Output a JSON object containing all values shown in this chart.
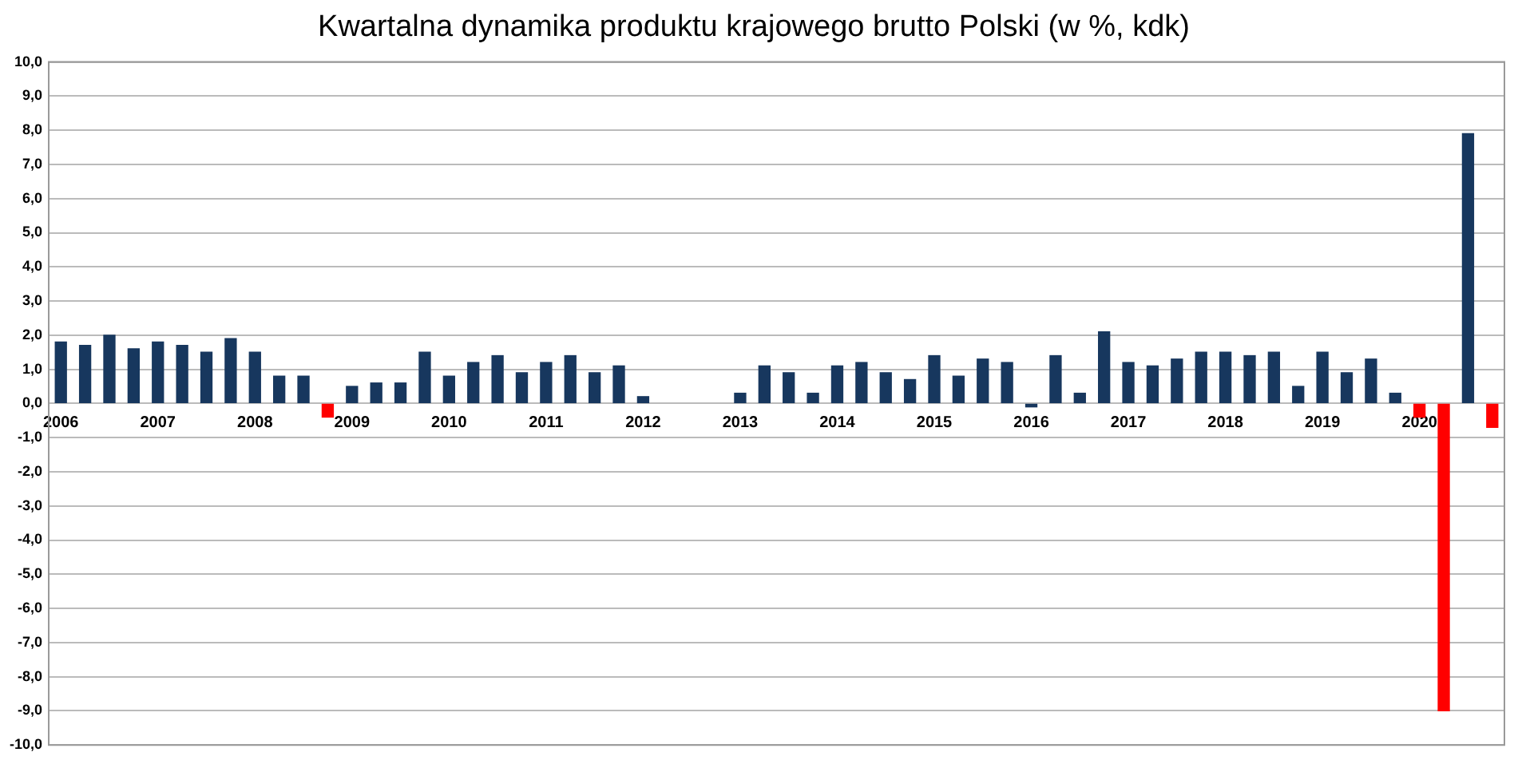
{
  "chart_data": {
    "type": "bar",
    "title": "Kwartalna dynamika produktu krajowego brutto Polski (w %, kdk)",
    "categories": [
      "2006",
      null,
      null,
      null,
      "2007",
      null,
      null,
      null,
      "2008",
      null,
      null,
      null,
      "2009",
      null,
      null,
      null,
      "2010",
      null,
      null,
      null,
      "2011",
      null,
      null,
      null,
      "2012",
      null,
      null,
      null,
      "2013",
      null,
      null,
      null,
      "2014",
      null,
      null,
      null,
      "2015",
      null,
      null,
      null,
      "2016",
      null,
      null,
      null,
      "2017",
      null,
      null,
      null,
      "2018",
      null,
      null,
      null,
      "2019",
      null,
      null,
      null,
      "2020",
      null,
      null,
      null
    ],
    "values": [
      1.8,
      1.7,
      2.0,
      1.6,
      1.8,
      1.7,
      1.5,
      1.9,
      1.5,
      0.8,
      0.8,
      -0.4,
      0.5,
      0.6,
      0.6,
      1.5,
      0.8,
      1.2,
      1.4,
      0.9,
      1.2,
      1.4,
      0.9,
      1.1,
      0.2,
      null,
      null,
      null,
      0.3,
      1.1,
      0.9,
      0.3,
      1.1,
      1.2,
      0.9,
      0.7,
      1.4,
      0.8,
      1.3,
      1.2,
      -0.1,
      1.4,
      0.3,
      2.1,
      1.2,
      1.1,
      1.3,
      1.5,
      1.5,
      1.4,
      1.5,
      0.5,
      1.5,
      0.9,
      1.3,
      0.3,
      -0.4,
      -9.0,
      7.9,
      -0.7
    ],
    "colors": [
      "#17375e",
      "#17375e",
      "#17375e",
      "#17375e",
      "#17375e",
      "#17375e",
      "#17375e",
      "#17375e",
      "#17375e",
      "#17375e",
      "#17375e",
      "#ff0000",
      "#17375e",
      "#17375e",
      "#17375e",
      "#17375e",
      "#17375e",
      "#17375e",
      "#17375e",
      "#17375e",
      "#17375e",
      "#17375e",
      "#17375e",
      "#17375e",
      "#17375e",
      "#17375e",
      "#17375e",
      "#17375e",
      "#17375e",
      "#17375e",
      "#17375e",
      "#17375e",
      "#17375e",
      "#17375e",
      "#17375e",
      "#17375e",
      "#17375e",
      "#17375e",
      "#17375e",
      "#17375e",
      "#17375e",
      "#17375e",
      "#17375e",
      "#17375e",
      "#17375e",
      "#17375e",
      "#17375e",
      "#17375e",
      "#17375e",
      "#17375e",
      "#17375e",
      "#17375e",
      "#17375e",
      "#17375e",
      "#17375e",
      "#17375e",
      "#ff0000",
      "#ff0000",
      "#17375e",
      "#ff0000"
    ],
    "ylim": [
      -10,
      10
    ],
    "yticks": [
      {
        "value": -10,
        "label": "-10,0"
      },
      {
        "value": -9,
        "label": "-9,0"
      },
      {
        "value": -8,
        "label": "-8,0"
      },
      {
        "value": -7,
        "label": "-7,0"
      },
      {
        "value": -6,
        "label": "-6,0"
      },
      {
        "value": -5,
        "label": "-5,0"
      },
      {
        "value": -4,
        "label": "-4,0"
      },
      {
        "value": -3,
        "label": "-3,0"
      },
      {
        "value": -2,
        "label": "-2,0"
      },
      {
        "value": -1,
        "label": "-1,0"
      },
      {
        "value": 0,
        "label": "0,0"
      },
      {
        "value": 1,
        "label": "1,0"
      },
      {
        "value": 2,
        "label": "2,0"
      },
      {
        "value": 3,
        "label": "3,0"
      },
      {
        "value": 4,
        "label": "4,0"
      },
      {
        "value": 5,
        "label": "5,0"
      },
      {
        "value": 6,
        "label": "6,0"
      },
      {
        "value": 7,
        "label": "7,0"
      },
      {
        "value": 8,
        "label": "8,0"
      },
      {
        "value": 9,
        "label": "9,0"
      },
      {
        "value": 10,
        "label": "10,0"
      }
    ],
    "grid": "y",
    "legend": false
  }
}
